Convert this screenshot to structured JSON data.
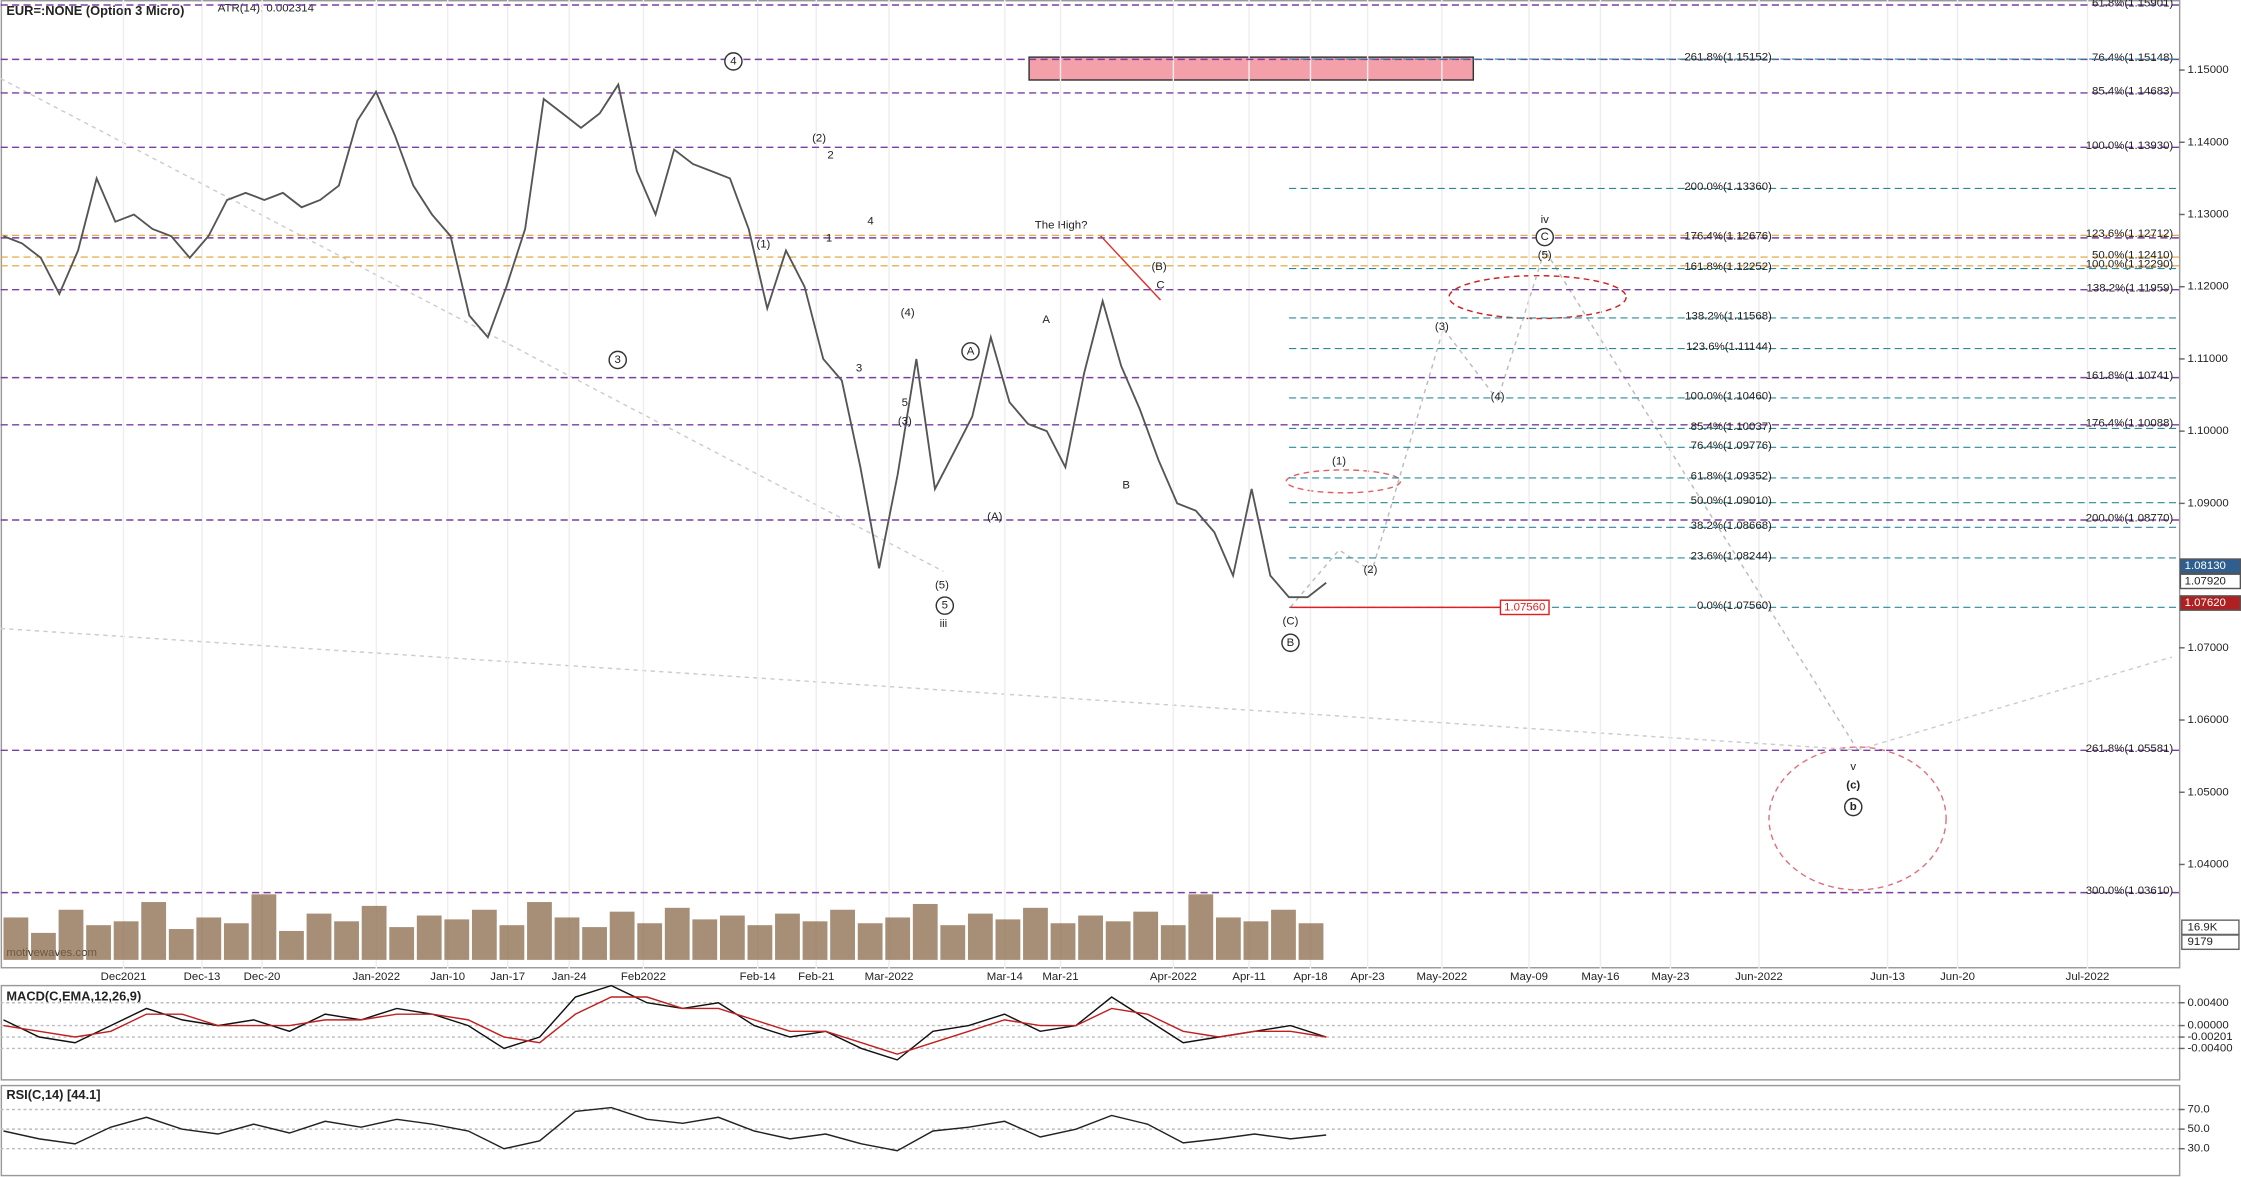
{
  "chart_data": [
    {
      "type": "line",
      "title": "EUR=:NONE (Option 3 Micro)",
      "subtitle": "ATR(14): 0.002314",
      "watermark": "motivewaves.com",
      "color": "#555555",
      "values": [
        1.127,
        1.126,
        1.124,
        1.119,
        1.125,
        1.135,
        1.129,
        1.13,
        1.128,
        1.127,
        1.124,
        1.127,
        1.132,
        1.133,
        1.132,
        1.133,
        1.131,
        1.132,
        1.134,
        1.143,
        1.147,
        1.141,
        1.134,
        1.13,
        1.127,
        1.116,
        1.113,
        1.12,
        1.128,
        1.146,
        1.144,
        1.142,
        1.144,
        1.148,
        1.136,
        1.13,
        1.139,
        1.137,
        1.136,
        1.135,
        1.128,
        1.117,
        1.125,
        1.12,
        1.11,
        1.107,
        1.095,
        1.081,
        1.094,
        1.11,
        1.092,
        1.097,
        1.102,
        1.113,
        1.104,
        1.101,
        1.1,
        1.095,
        1.108,
        1.118,
        1.109,
        1.103,
        1.096,
        1.09,
        1.089,
        1.086,
        1.08,
        1.092,
        1.08,
        1.077,
        1.077,
        1.079
      ],
      "ylim": [
        1.0256,
        1.1597
      ],
      "yticks": [
        {
          "value": 1.15,
          "label": "1.15000"
        },
        {
          "value": 1.14,
          "label": "1.14000"
        },
        {
          "value": 1.13,
          "label": "1.13000"
        },
        {
          "value": 1.12,
          "label": "1.12000"
        },
        {
          "value": 1.11,
          "label": "1.11000"
        },
        {
          "value": 1.1,
          "label": "1.10000"
        },
        {
          "value": 1.09,
          "label": "1.09000"
        },
        {
          "value": 1.07,
          "label": "1.07000"
        },
        {
          "value": 1.06,
          "label": "1.06000"
        },
        {
          "value": 1.05,
          "label": "1.05000"
        },
        {
          "value": 1.04,
          "label": "1.04000"
        }
      ],
      "x_labels": [
        "Dec2021",
        "Dec-13",
        "Dec-20",
        "Jan-2022",
        "Jan-10",
        "Jan-17",
        "Jan-24",
        "Feb2022",
        "Feb-14",
        "Feb-21",
        "Mar-2022",
        "Mar-14",
        "Mar-21",
        "Apr-2022",
        "Apr-11",
        "Apr-18",
        "Apr-23",
        "May-2022",
        "May-09",
        "May-16",
        "May-23",
        "Jun-2022",
        "Jun-13",
        "Jun-20",
        "Jul-2022"
      ],
      "fib_right": [
        {
          "label": "61.8%(1.15901)",
          "value": 1.15901,
          "color": "#7a3fa0"
        },
        {
          "label": "76.4%(1.15148)",
          "value": 1.15148,
          "color": "#7a3fa0"
        },
        {
          "label": "85.4%(1.14683)",
          "value": 1.14683,
          "color": "#7a3fa0"
        },
        {
          "label": "100.0%(1.13930)",
          "value": 1.1393,
          "color": "#7a3fa0"
        },
        {
          "label": "138.2%(1.11959)",
          "value": 1.11959,
          "color": "#7a3fa0"
        },
        {
          "label": "161.8%(1.10741)",
          "value": 1.10741,
          "color": "#7a3fa0"
        },
        {
          "label": "176.4%(1.10088)",
          "value": 1.10088,
          "color": "#7a3fa0"
        },
        {
          "label": "200.0%(1.08770)",
          "value": 1.0877,
          "color": "#7a3fa0"
        },
        {
          "label": "261.8%(1.05581)",
          "value": 1.05581,
          "color": "#7a3fa0"
        },
        {
          "label": "300.0%(1.03610)",
          "value": 1.0361,
          "color": "#7a3fa0"
        },
        {
          "label": "123.6%(1.12712)",
          "value": 1.12712,
          "color": "#e0a030"
        },
        {
          "label": "50.0%(1.12410)",
          "value": 1.1241,
          "color": "#e0a030"
        },
        {
          "label": "100.0%(1.12290)",
          "value": 1.1229,
          "color": "#e0a030"
        }
      ],
      "fib_mid": [
        {
          "label": "261.8%(1.15152)",
          "value": 1.15152,
          "color": "#2a8a9a"
        },
        {
          "label": "200.0%(1.13360)",
          "value": 1.1336,
          "color": "#2a8a9a"
        },
        {
          "label": "176.4%(1.12676)",
          "value": 1.12676,
          "color": "#7a3fa0"
        },
        {
          "label": "161.8%(1.12252)",
          "value": 1.12252,
          "color": "#2a8a9a"
        },
        {
          "label": "138.2%(1.11568)",
          "value": 1.11568,
          "color": "#2a8a9a"
        },
        {
          "label": "123.6%(1.11144)",
          "value": 1.11144,
          "color": "#2a8a9a"
        },
        {
          "label": "100.0%(1.10460)",
          "value": 1.1046,
          "color": "#2a8a9a"
        },
        {
          "label": "85.4%(1.10037)",
          "value": 1.10037,
          "color": "#2a8a9a"
        },
        {
          "label": "76.4%(1.09776)",
          "value": 1.09776,
          "color": "#2a8a9a"
        },
        {
          "label": "61.8%(1.09352)",
          "value": 1.09352,
          "color": "#2a8a9a"
        },
        {
          "label": "50.0%(1.09010)",
          "value": 1.0901,
          "color": "#2a8a9a"
        },
        {
          "label": "38.2%(1.08668)",
          "value": 1.08668,
          "color": "#2a8a9a"
        },
        {
          "label": "23.6%(1.08244)",
          "value": 1.08244,
          "color": "#2a8a9a"
        },
        {
          "label": "0.0%(1.07560)",
          "value": 1.0756,
          "color": "#2a8a9a"
        }
      ],
      "price_tags": [
        {
          "value": 1.0813,
          "label": "1.08130",
          "color": "#2f5f8f"
        },
        {
          "value": 1.0792,
          "label": "1.07920",
          "color": "#ffffff"
        },
        {
          "value": 1.0762,
          "label": "1.07620",
          "color": "#b02020"
        }
      ],
      "level_box": {
        "value": 1.0756,
        "label": "1.07560"
      },
      "annotation": "The High?",
      "wave_labels": [
        {
          "text": "4",
          "circled": true
        },
        {
          "text": "3",
          "circled": true
        },
        {
          "text": "(2)"
        },
        {
          "text": "2"
        },
        {
          "text": "(1)"
        },
        {
          "text": "1"
        },
        {
          "text": "4"
        },
        {
          "text": "(4)"
        },
        {
          "text": "3"
        },
        {
          "text": "5"
        },
        {
          "text": "(3)"
        },
        {
          "text": "A",
          "circled": true
        },
        {
          "text": "A"
        },
        {
          "text": "(A)"
        },
        {
          "text": "(5)"
        },
        {
          "text": "5",
          "circled": true
        },
        {
          "text": "iii"
        },
        {
          "text": "B"
        },
        {
          "text": "(B)"
        },
        {
          "text": "C"
        },
        {
          "text": "(C)"
        },
        {
          "text": "B",
          "circled": true
        },
        {
          "text": "(1)"
        },
        {
          "text": "(2)"
        },
        {
          "text": "(3)"
        },
        {
          "text": "(4)"
        },
        {
          "text": "iv"
        },
        {
          "text": "C",
          "circled": true
        },
        {
          "text": "(5)"
        },
        {
          "text": "v"
        },
        {
          "text": "(c)"
        },
        {
          "text": "b",
          "circled": true
        }
      ],
      "volume": {
        "color": "#8a6a4a",
        "values": [
          22000,
          14000,
          26000,
          18000,
          20000,
          30000,
          16000,
          22000,
          19000,
          34000,
          15000,
          24000,
          20000,
          28000,
          17000,
          23000,
          21000,
          26000,
          18000,
          30000,
          22000,
          17000,
          25000,
          19000,
          27000,
          21000,
          23000,
          18000,
          24000,
          20000,
          26000,
          19000,
          22000,
          29000,
          18000,
          24000,
          21000,
          27000,
          19000,
          23000,
          20000,
          25000,
          18000,
          34000,
          22000,
          20000,
          26000,
          19000
        ],
        "ticks": [
          {
            "value": 16900,
            "label": "16.9K"
          },
          9179
        ]
      }
    },
    {
      "type": "line",
      "title": "MACD(C,EMA,12,26,9)",
      "ylim": [
        -0.0095,
        0.007
      ],
      "yticks": [
        {
          "value": 0.004,
          "label": "0.00400"
        },
        {
          "value": 0,
          "label": "0.00000"
        },
        {
          "value": -0.00201,
          "label": "-0.00201"
        },
        {
          "value": -0.004,
          "label": "-0.00400"
        }
      ],
      "series": [
        {
          "color": "#111111",
          "values": [
            0.001,
            -0.002,
            -0.003,
            0.0,
            0.003,
            0.001,
            0.0,
            0.001,
            -0.001,
            0.002,
            0.001,
            0.003,
            0.002,
            0.0,
            -0.004,
            -0.002,
            0.005,
            0.007,
            0.004,
            0.003,
            0.004,
            0.0,
            -0.002,
            -0.001,
            -0.004,
            -0.006,
            -0.001,
            0.0,
            0.002,
            -0.001,
            0.0,
            0.005,
            0.001,
            -0.003,
            -0.002,
            -0.001,
            0.0,
            -0.002
          ]
        },
        {
          "color": "#c02020",
          "values": [
            0.0,
            -0.001,
            -0.002,
            -0.001,
            0.002,
            0.002,
            0.0,
            0.0,
            0.0,
            0.001,
            0.001,
            0.002,
            0.002,
            0.001,
            -0.002,
            -0.003,
            0.002,
            0.005,
            0.005,
            0.003,
            0.003,
            0.001,
            -0.001,
            -0.001,
            -0.003,
            -0.005,
            -0.003,
            -0.001,
            0.001,
            0.0,
            0.0,
            0.003,
            0.002,
            -0.001,
            -0.002,
            -0.001,
            -0.001,
            -0.002
          ]
        }
      ]
    },
    {
      "type": "line",
      "title": "RSI(C,14) [44.1]",
      "ylim": [
        2.6,
        94.4
      ],
      "yticks": [
        {
          "value": 70,
          "label": "70.0"
        },
        {
          "value": 50,
          "label": "50.0"
        },
        {
          "value": 30,
          "label": "30.0"
        }
      ],
      "series": [
        {
          "color": "#222222",
          "values": [
            48,
            40,
            35,
            52,
            62,
            50,
            45,
            55,
            46,
            58,
            52,
            60,
            55,
            48,
            30,
            38,
            68,
            72,
            60,
            56,
            62,
            48,
            40,
            45,
            35,
            28,
            48,
            52,
            58,
            42,
            50,
            64,
            55,
            36,
            40,
            45,
            40,
            44
          ]
        }
      ]
    }
  ]
}
